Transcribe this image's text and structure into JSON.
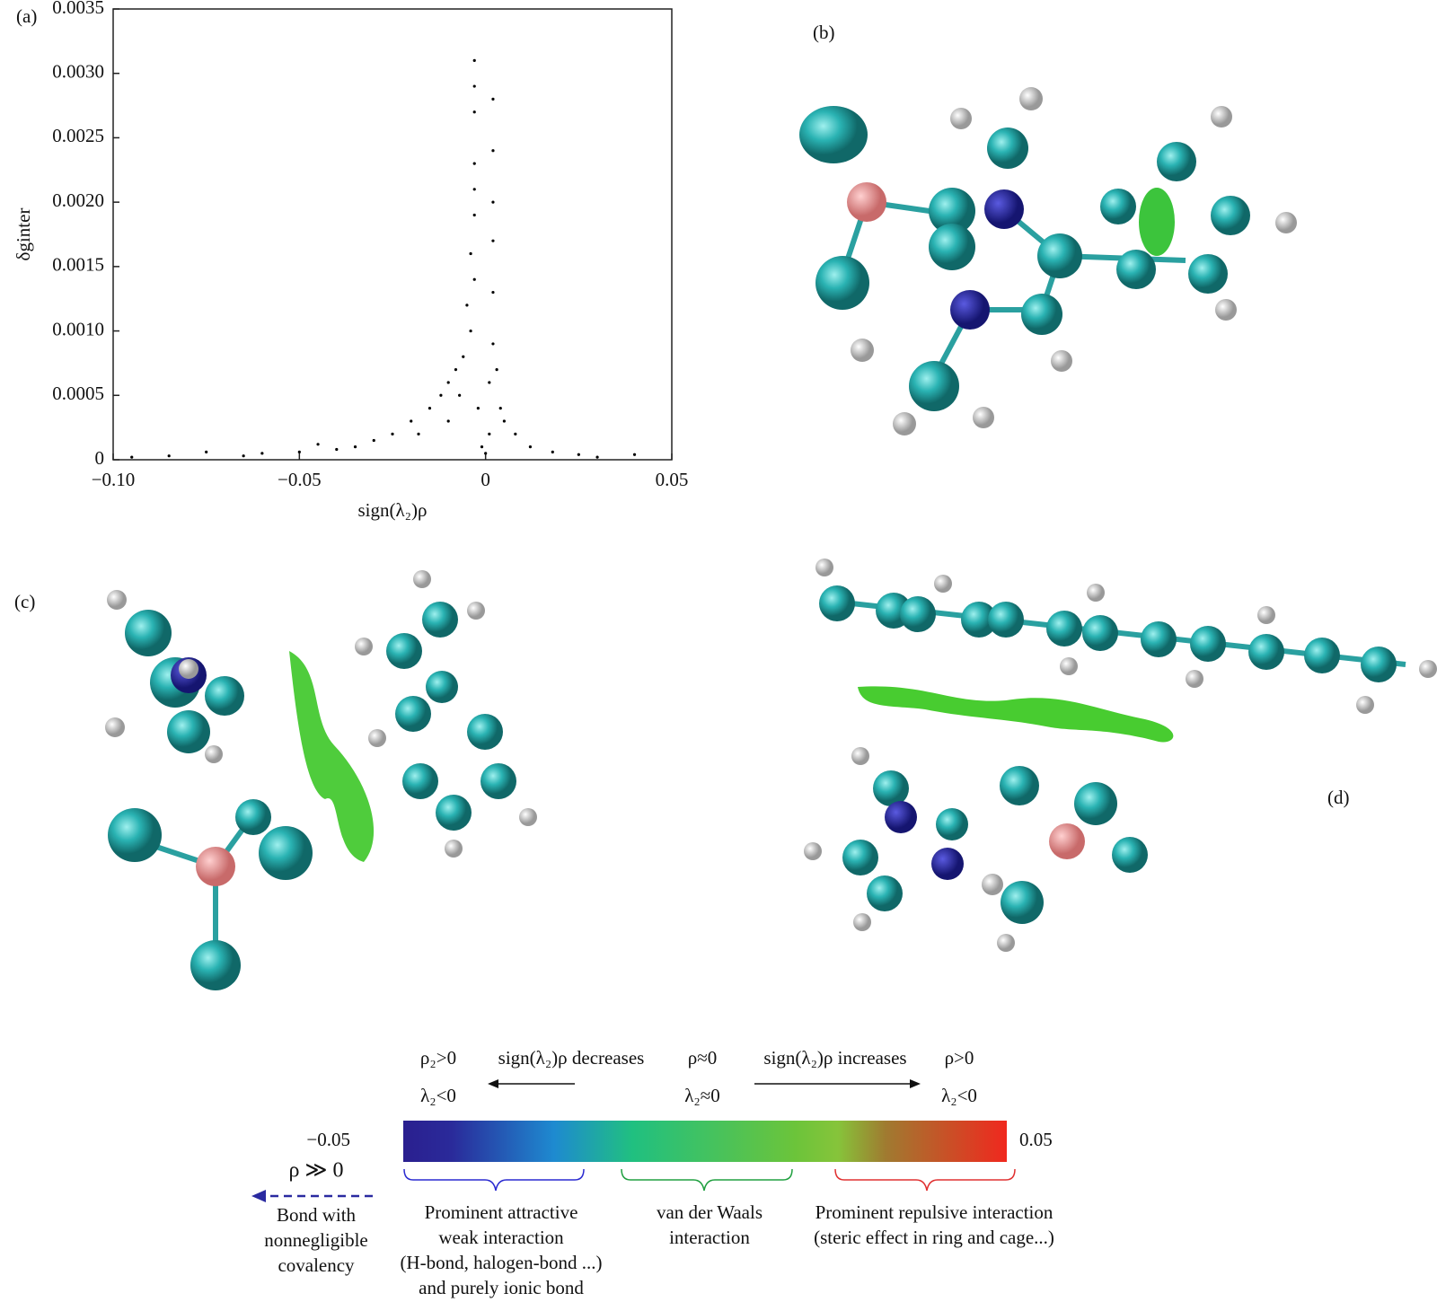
{
  "panels": {
    "a": "(a)",
    "b": "(b)",
    "c": "(c)",
    "d": "(d)"
  },
  "chart_data": {
    "type": "scatter",
    "x_label": "sign(λ₂)ρ",
    "y_label": "δginter",
    "color": "#000000",
    "xlim": [
      -0.1,
      0.05
    ],
    "ylim": [
      0,
      0.0035
    ],
    "xticks": [
      {
        "value": -0.1,
        "label": "−0.10"
      },
      {
        "value": -0.05,
        "label": "−0.05"
      },
      0,
      0.05
    ],
    "yticks": [
      0,
      0.0005,
      {
        "value": 0.001,
        "label": "0.0010"
      },
      0.0015,
      {
        "value": 0.002,
        "label": "0.0020"
      },
      0.0025,
      {
        "value": 0.003,
        "label": "0.0030"
      },
      0.0035
    ],
    "x": [
      -0.003,
      -0.003,
      0.002,
      -0.003,
      0.002,
      -0.003,
      -0.003,
      0.002,
      -0.003,
      0.002,
      -0.004,
      -0.003,
      0.002,
      -0.005,
      -0.004,
      0.002,
      -0.006,
      -0.008,
      0.003,
      -0.01,
      -0.012,
      -0.007,
      0.004,
      -0.015,
      -0.02,
      -0.01,
      0.005,
      -0.025,
      -0.018,
      0.008,
      -0.03,
      -0.035,
      0.012,
      -0.04,
      -0.05,
      0.018,
      -0.06,
      -0.075,
      0.025,
      -0.085,
      -0.095,
      0.04,
      -0.001,
      0.001,
      0,
      -0.002,
      0.001,
      -0.045,
      -0.065,
      0.03
    ],
    "y": [
      0.0031,
      0.0029,
      0.0028,
      0.0027,
      0.0024,
      0.0023,
      0.0021,
      0.002,
      0.0019,
      0.0017,
      0.0016,
      0.0014,
      0.0013,
      0.0012,
      0.001,
      0.0009,
      0.0008,
      0.0007,
      0.0007,
      0.0006,
      0.0005,
      0.0005,
      0.0004,
      0.0004,
      0.0003,
      0.0003,
      0.0003,
      0.0002,
      0.0002,
      0.0002,
      0.00015,
      0.0001,
      0.0001,
      8e-05,
      6e-05,
      6e-05,
      5e-05,
      6e-05,
      4e-05,
      3e-05,
      2e-05,
      4e-05,
      0.0001,
      0.0002,
      5e-05,
      0.0004,
      0.0006,
      0.00012,
      3e-05,
      2e-05
    ]
  },
  "legend": {
    "left_top": "ρ₂>0",
    "left_bottom": "λ₂<0",
    "decreases": "sign(λ₂)ρ decreases",
    "mid_top": "ρ≈0",
    "mid_bottom": "λ₂≈0",
    "increases": "sign(λ₂)ρ increases",
    "right_top": "ρ>0",
    "right_bottom": "λ₂<0",
    "min": "−0.05",
    "max": "0.05",
    "rho_big": "ρ ≫ 0",
    "bond": [
      "Bond with",
      "nonnegligible",
      "covalency"
    ],
    "attractive": [
      "Prominent attractive",
      "weak interaction",
      "(H-bond, halogen-bond ...)",
      "and purely ionic bond"
    ],
    "vdw": [
      "van der Waals",
      "interaction"
    ],
    "repulsive": [
      "Prominent repulsive interaction",
      "(steric effect in ring and cage...)"
    ]
  }
}
